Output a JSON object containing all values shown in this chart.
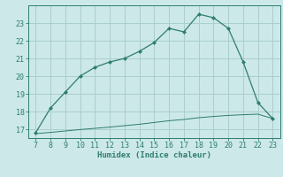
{
  "x_upper": [
    7,
    8,
    9,
    10,
    11,
    12,
    13,
    14,
    15,
    16,
    17,
    18,
    19,
    20,
    21,
    22,
    23
  ],
  "y_upper": [
    16.8,
    18.2,
    19.1,
    20.0,
    20.5,
    20.8,
    21.0,
    21.4,
    21.9,
    22.7,
    22.5,
    23.5,
    23.3,
    22.7,
    20.8,
    18.5,
    17.6
  ],
  "x_lower": [
    7,
    8,
    9,
    10,
    11,
    12,
    13,
    14,
    15,
    16,
    17,
    18,
    19,
    20,
    21,
    22,
    23
  ],
  "y_lower": [
    16.75,
    16.82,
    16.9,
    16.98,
    17.05,
    17.12,
    17.2,
    17.28,
    17.38,
    17.48,
    17.55,
    17.65,
    17.72,
    17.78,
    17.82,
    17.85,
    17.6
  ],
  "line_color": "#2e7d6e",
  "marker": "D",
  "marker_size": 2.5,
  "xlabel": "Humidex (Indice chaleur)",
  "xlim": [
    6.5,
    23.5
  ],
  "ylim": [
    16.5,
    24.0
  ],
  "yticks": [
    17,
    18,
    19,
    20,
    21,
    22,
    23
  ],
  "xticks": [
    7,
    8,
    9,
    10,
    11,
    12,
    13,
    14,
    15,
    16,
    17,
    18,
    19,
    20,
    21,
    22,
    23
  ],
  "bg_color": "#cce8e8",
  "grid_color": "#aacece",
  "font_color": "#2e7d6e",
  "font_family": "monospace",
  "tick_fontsize": 6,
  "xlabel_fontsize": 6.5
}
